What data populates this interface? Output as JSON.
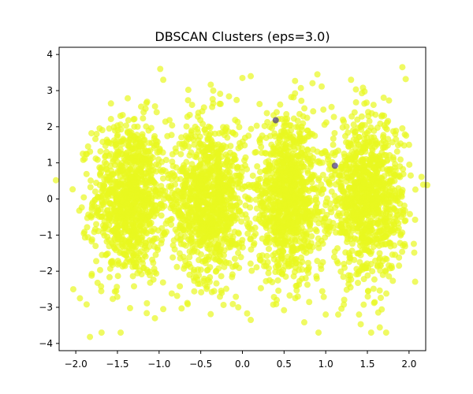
{
  "chart_data": {
    "type": "scatter",
    "title": "DBSCAN Clusters (eps=3.0)",
    "xlabel": "",
    "ylabel": "",
    "xlim": [
      -2.2,
      2.2
    ],
    "ylim": [
      -4.2,
      4.2
    ],
    "xticks": [
      -2.0,
      -1.5,
      -1.0,
      -0.5,
      0.0,
      0.5,
      1.0,
      1.5,
      2.0
    ],
    "xtick_labels": [
      "−2.0",
      "−1.5",
      "−1.0",
      "−0.5",
      "0.0",
      "0.5",
      "1.0",
      "1.5",
      "2.0"
    ],
    "yticks": [
      -4,
      -3,
      -2,
      -1,
      0,
      1,
      2,
      3,
      4
    ],
    "ytick_labels": [
      "−4",
      "−3",
      "−2",
      "−1",
      "0",
      "1",
      "2",
      "3",
      "4"
    ],
    "grid": false,
    "legend": "none",
    "clusters": [
      {
        "label": 0,
        "color": "#e8f81f",
        "x_center": -1.35,
        "x_spread": 0.22,
        "y_center": 0.0,
        "y_spread": 1.1,
        "count": 1000
      },
      {
        "label": 0,
        "color": "#e8f81f",
        "x_center": -0.4,
        "x_spread": 0.22,
        "y_center": 0.0,
        "y_spread": 1.1,
        "count": 1000
      },
      {
        "label": 0,
        "color": "#e8f81f",
        "x_center": 0.55,
        "x_spread": 0.22,
        "y_center": 0.0,
        "y_spread": 1.1,
        "count": 1000
      },
      {
        "label": 0,
        "color": "#e8f81f",
        "x_center": 1.5,
        "x_spread": 0.22,
        "y_center": 0.0,
        "y_spread": 1.1,
        "count": 1000
      }
    ],
    "highlight_points": [
      {
        "x": -1.83,
        "y": -3.82
      },
      {
        "x": -1.87,
        "y": -2.92
      },
      {
        "x": -2.03,
        "y": -2.5
      },
      {
        "x": -1.95,
        "y": -2.75
      },
      {
        "x": -0.95,
        "y": -3.05
      },
      {
        "x": -0.73,
        "y": -3.03
      },
      {
        "x": -0.95,
        "y": 3.3
      },
      {
        "x": -0.35,
        "y": 3.0
      },
      {
        "x": -0.05,
        "y": -3.0
      },
      {
        "x": 0.1,
        "y": -3.35
      },
      {
        "x": 0.0,
        "y": 3.35
      },
      {
        "x": 0.1,
        "y": 3.4
      },
      {
        "x": 0.9,
        "y": 3.45
      },
      {
        "x": 1.0,
        "y": -3.2
      },
      {
        "x": 1.15,
        "y": -3.2
      },
      {
        "x": 1.4,
        "y": -3.2
      },
      {
        "x": 1.92,
        "y": 3.65
      },
      {
        "x": 1.96,
        "y": 3.32
      },
      {
        "x": 2.02,
        "y": 0.65
      },
      {
        "x": 2.0,
        "y": 1.5
      }
    ],
    "noise_points": [
      {
        "x": 0.4,
        "y": 2.18,
        "label": -1,
        "color": "#46327e"
      },
      {
        "x": 1.11,
        "y": 0.92,
        "label": -1,
        "color": "#46327e"
      }
    ],
    "point_alpha": 0.7
  }
}
